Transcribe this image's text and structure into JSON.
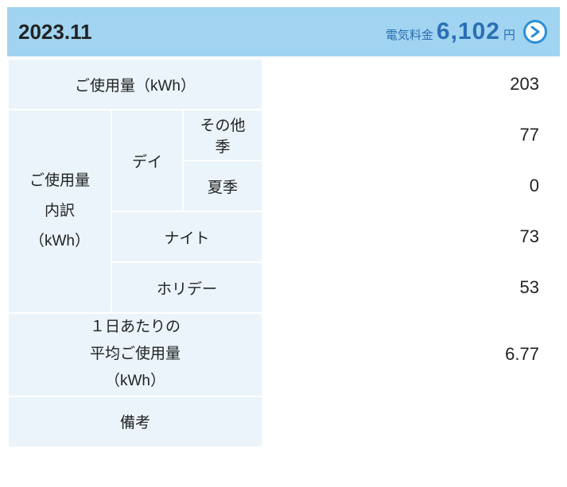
{
  "header": {
    "period": "2023.11",
    "fee_label": "電気料金",
    "fee_value": "6,102",
    "fee_unit": "円"
  },
  "rows": {
    "usage_label": "ご使用量（kWh）",
    "usage_value": "203",
    "breakdown_label": "ご使用量\n内訳\n（kWh）",
    "day_label": "デイ",
    "other_season_label": "その他季",
    "other_season_value": "77",
    "summer_label": "夏季",
    "summer_value": "0",
    "night_label": "ナイト",
    "night_value": "73",
    "holiday_label": "ホリデー",
    "holiday_value": "53",
    "avg_label": "１日あたりの\n平均ご使用量\n（kWh）",
    "avg_value": "6.77",
    "notes_label": "備考",
    "notes_value": ""
  },
  "colors": {
    "header_bg": "#a0d4f0",
    "cell_bg": "#eaf4fa",
    "accent": "#2b6fb3",
    "arrow": "#2b8fd6"
  }
}
